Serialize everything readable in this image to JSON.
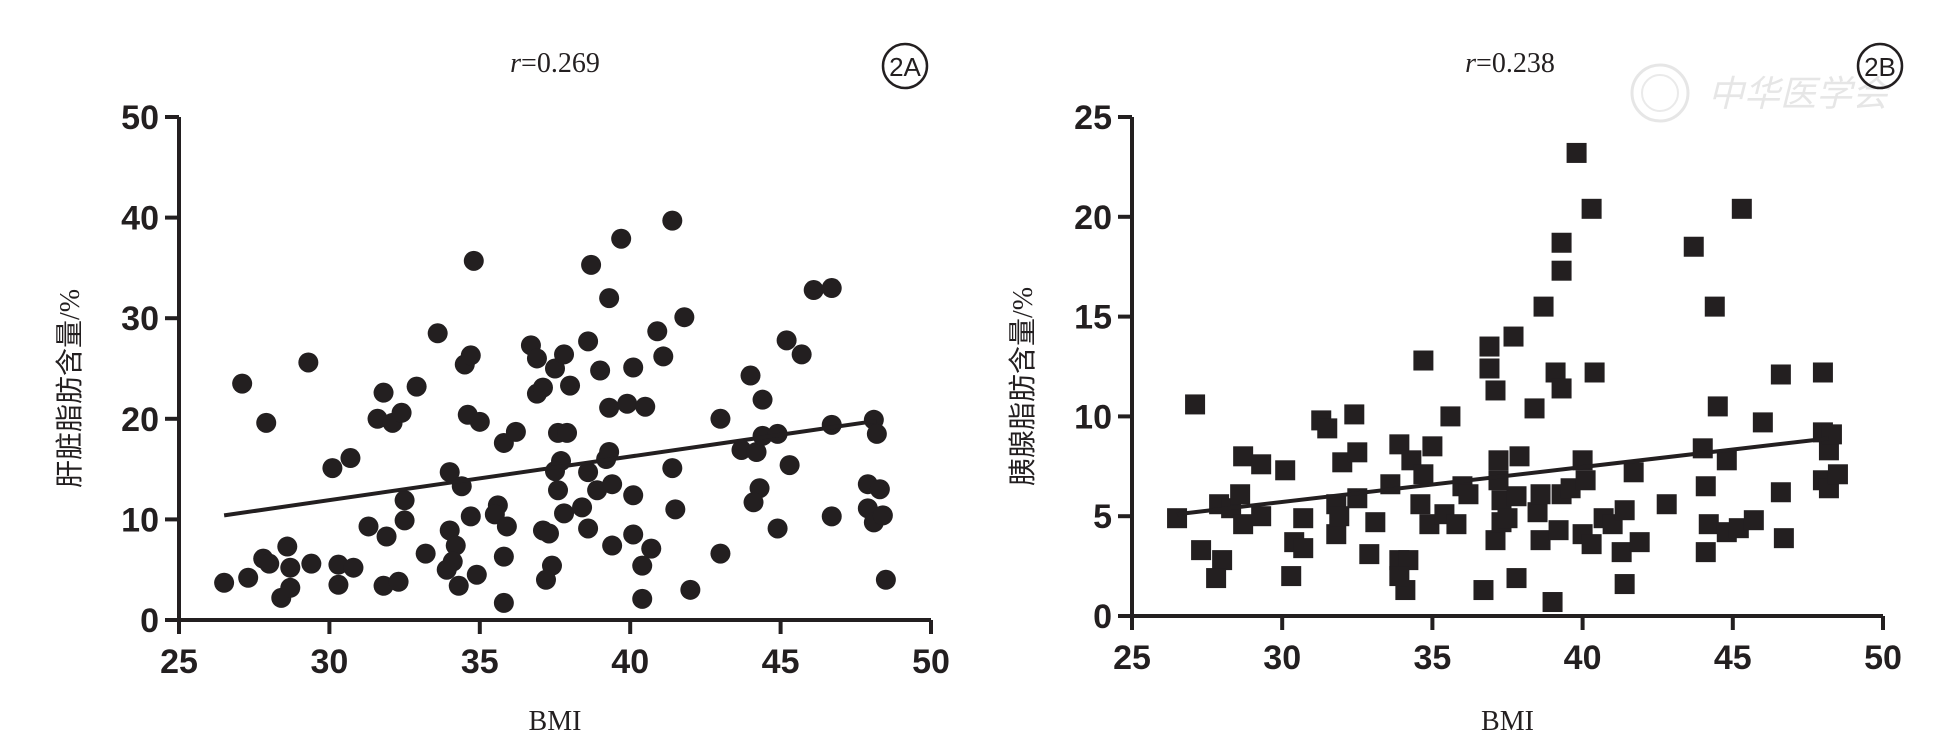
{
  "chart_data": [
    {
      "type": "scatter",
      "panel": "2A",
      "title": "r=0.269",
      "title_italic": "r",
      "title_rest": "=0.269",
      "xlabel": "BMI",
      "ylabel": "肝脏脂肪含量/%",
      "xlim": [
        25,
        50
      ],
      "ylim": [
        0,
        50
      ],
      "xticks": [
        "25",
        "30",
        "35",
        "40",
        "45",
        "50"
      ],
      "yticks": [
        "0",
        "10",
        "20",
        "30",
        "40",
        "50"
      ],
      "marker": "circle",
      "color": "#231f20",
      "points": [
        [
          26.5,
          3.7
        ],
        [
          27.3,
          4.2
        ],
        [
          27.1,
          23.5
        ],
        [
          27.9,
          19.6
        ],
        [
          27.8,
          6.1
        ],
        [
          28.0,
          5.6
        ],
        [
          28.4,
          2.2
        ],
        [
          28.6,
          7.3
        ],
        [
          28.7,
          5.2
        ],
        [
          28.7,
          3.2
        ],
        [
          29.4,
          5.6
        ],
        [
          29.3,
          25.6
        ],
        [
          30.1,
          15.1
        ],
        [
          30.3,
          3.5
        ],
        [
          30.3,
          5.5
        ],
        [
          30.7,
          16.1
        ],
        [
          30.8,
          5.2
        ],
        [
          31.3,
          9.3
        ],
        [
          31.6,
          20.0
        ],
        [
          31.8,
          22.6
        ],
        [
          32.1,
          19.6
        ],
        [
          32.4,
          20.6
        ],
        [
          31.8,
          3.4
        ],
        [
          31.9,
          8.3
        ],
        [
          32.3,
          3.8
        ],
        [
          32.5,
          11.9
        ],
        [
          32.5,
          9.9
        ],
        [
          32.9,
          23.2
        ],
        [
          33.2,
          6.6
        ],
        [
          33.6,
          28.5
        ],
        [
          34.0,
          14.7
        ],
        [
          34.0,
          8.9
        ],
        [
          34.2,
          7.4
        ],
        [
          34.1,
          5.8
        ],
        [
          33.9,
          5.0
        ],
        [
          34.3,
          3.4
        ],
        [
          34.4,
          13.3
        ],
        [
          34.5,
          25.4
        ],
        [
          34.7,
          26.3
        ],
        [
          34.6,
          20.4
        ],
        [
          34.7,
          10.3
        ],
        [
          34.8,
          35.7
        ],
        [
          35.0,
          19.7
        ],
        [
          34.9,
          4.5
        ],
        [
          35.6,
          11.4
        ],
        [
          35.5,
          10.5
        ],
        [
          35.8,
          17.6
        ],
        [
          36.2,
          18.7
        ],
        [
          35.9,
          9.3
        ],
        [
          35.8,
          6.3
        ],
        [
          35.8,
          1.7
        ],
        [
          36.7,
          27.3
        ],
        [
          36.9,
          26.0
        ],
        [
          36.9,
          22.5
        ],
        [
          37.1,
          23.1
        ],
        [
          37.5,
          25.0
        ],
        [
          37.1,
          8.9
        ],
        [
          37.3,
          8.6
        ],
        [
          37.4,
          5.4
        ],
        [
          37.2,
          4.0
        ],
        [
          37.6,
          18.6
        ],
        [
          37.9,
          18.6
        ],
        [
          37.7,
          15.8
        ],
        [
          37.5,
          14.8
        ],
        [
          37.6,
          12.9
        ],
        [
          37.8,
          26.4
        ],
        [
          38.0,
          23.3
        ],
        [
          37.8,
          10.6
        ],
        [
          38.4,
          11.2
        ],
        [
          38.6,
          14.7
        ],
        [
          38.6,
          27.7
        ],
        [
          38.7,
          35.3
        ],
        [
          38.6,
          9.1
        ],
        [
          38.9,
          12.9
        ],
        [
          39.0,
          24.8
        ],
        [
          39.2,
          16.0
        ],
        [
          39.3,
          16.7
        ],
        [
          39.3,
          21.1
        ],
        [
          39.3,
          32.0
        ],
        [
          39.4,
          13.5
        ],
        [
          39.4,
          7.4
        ],
        [
          39.7,
          37.9
        ],
        [
          39.9,
          21.5
        ],
        [
          40.1,
          12.4
        ],
        [
          40.1,
          25.1
        ],
        [
          40.1,
          8.5
        ],
        [
          40.4,
          5.4
        ],
        [
          40.4,
          2.1
        ],
        [
          40.5,
          21.2
        ],
        [
          40.7,
          7.1
        ],
        [
          40.9,
          28.7
        ],
        [
          41.1,
          26.2
        ],
        [
          41.4,
          39.7
        ],
        [
          41.4,
          15.1
        ],
        [
          41.5,
          11.0
        ],
        [
          41.8,
          30.1
        ],
        [
          42.0,
          3.0
        ],
        [
          43.0,
          20.0
        ],
        [
          43.0,
          6.6
        ],
        [
          43.7,
          16.9
        ],
        [
          44.0,
          24.3
        ],
        [
          44.2,
          16.7
        ],
        [
          44.3,
          13.1
        ],
        [
          44.1,
          11.7
        ],
        [
          44.4,
          21.9
        ],
        [
          44.4,
          18.3
        ],
        [
          44.9,
          18.5
        ],
        [
          44.9,
          9.1
        ],
        [
          45.2,
          27.8
        ],
        [
          45.3,
          15.4
        ],
        [
          45.7,
          26.4
        ],
        [
          46.1,
          32.8
        ],
        [
          46.7,
          33.0
        ],
        [
          46.7,
          19.4
        ],
        [
          46.7,
          10.3
        ],
        [
          48.1,
          19.9
        ],
        [
          48.2,
          18.5
        ],
        [
          47.9,
          13.5
        ],
        [
          48.3,
          13.0
        ],
        [
          47.9,
          11.1
        ],
        [
          48.1,
          9.7
        ],
        [
          48.4,
          10.4
        ],
        [
          48.5,
          4.0
        ]
      ],
      "trendline": [
        [
          26.5,
          10.4
        ],
        [
          48.2,
          19.8
        ]
      ]
    },
    {
      "type": "scatter",
      "panel": "2B",
      "title": "r=0.238",
      "title_italic": "r",
      "title_rest": "=0.238",
      "xlabel": "BMI",
      "ylabel": "胰腺脂肪含量/%",
      "xlim": [
        25,
        50
      ],
      "ylim": [
        0,
        25
      ],
      "xticks": [
        "25",
        "30",
        "35",
        "40",
        "45",
        "50"
      ],
      "yticks": [
        "0",
        "5",
        "10",
        "15",
        "20",
        "25"
      ],
      "marker": "square",
      "color": "#231f20",
      "points": [
        [
          26.5,
          4.9
        ],
        [
          27.1,
          10.6
        ],
        [
          27.3,
          3.3
        ],
        [
          28.0,
          2.8
        ],
        [
          27.8,
          1.9
        ],
        [
          27.9,
          5.6
        ],
        [
          28.3,
          5.4
        ],
        [
          28.6,
          6.1
        ],
        [
          28.7,
          8.0
        ],
        [
          28.7,
          4.6
        ],
        [
          29.3,
          7.6
        ],
        [
          29.3,
          5.0
        ],
        [
          30.1,
          7.3
        ],
        [
          30.3,
          2.0
        ],
        [
          30.4,
          3.7
        ],
        [
          30.7,
          3.4
        ],
        [
          30.7,
          4.9
        ],
        [
          31.3,
          9.8
        ],
        [
          31.5,
          9.4
        ],
        [
          31.8,
          4.1
        ],
        [
          31.8,
          5.6
        ],
        [
          31.9,
          5.0
        ],
        [
          32.0,
          7.7
        ],
        [
          32.4,
          10.1
        ],
        [
          32.5,
          8.2
        ],
        [
          32.5,
          5.9
        ],
        [
          32.9,
          3.1
        ],
        [
          33.1,
          4.7
        ],
        [
          33.6,
          6.6
        ],
        [
          33.9,
          8.6
        ],
        [
          33.9,
          2.8
        ],
        [
          34.2,
          2.8
        ],
        [
          34.1,
          1.3
        ],
        [
          33.9,
          2.0
        ],
        [
          34.3,
          7.8
        ],
        [
          34.7,
          12.8
        ],
        [
          34.7,
          7.1
        ],
        [
          34.6,
          5.6
        ],
        [
          34.9,
          4.6
        ],
        [
          35.0,
          8.5
        ],
        [
          35.4,
          5.1
        ],
        [
          35.6,
          10.0
        ],
        [
          35.8,
          4.6
        ],
        [
          36.0,
          6.5
        ],
        [
          36.2,
          6.1
        ],
        [
          36.7,
          1.3
        ],
        [
          36.9,
          13.5
        ],
        [
          36.9,
          12.4
        ],
        [
          37.1,
          11.3
        ],
        [
          37.2,
          7.8
        ],
        [
          37.2,
          6.8
        ],
        [
          37.1,
          3.8
        ],
        [
          37.3,
          4.7
        ],
        [
          37.3,
          5.8
        ],
        [
          37.5,
          4.9
        ],
        [
          37.7,
          14.0
        ],
        [
          37.8,
          1.9
        ],
        [
          37.8,
          6.0
        ],
        [
          37.9,
          8.0
        ],
        [
          38.4,
          10.4
        ],
        [
          38.7,
          15.5
        ],
        [
          38.5,
          5.2
        ],
        [
          38.6,
          3.8
        ],
        [
          38.6,
          6.1
        ],
        [
          39.0,
          0.7
        ],
        [
          39.1,
          12.2
        ],
        [
          39.3,
          18.7
        ],
        [
          39.3,
          17.3
        ],
        [
          39.3,
          11.4
        ],
        [
          39.2,
          4.3
        ],
        [
          39.3,
          6.1
        ],
        [
          39.6,
          6.4
        ],
        [
          39.8,
          23.2
        ],
        [
          40.0,
          7.8
        ],
        [
          40.1,
          6.8
        ],
        [
          40.0,
          4.1
        ],
        [
          40.3,
          3.6
        ],
        [
          40.3,
          20.4
        ],
        [
          40.4,
          12.2
        ],
        [
          40.7,
          4.9
        ],
        [
          41.0,
          4.6
        ],
        [
          41.3,
          3.2
        ],
        [
          41.4,
          1.6
        ],
        [
          41.4,
          5.3
        ],
        [
          41.7,
          7.2
        ],
        [
          41.9,
          3.7
        ],
        [
          42.8,
          5.6
        ],
        [
          43.7,
          18.5
        ],
        [
          44.0,
          8.4
        ],
        [
          44.1,
          6.5
        ],
        [
          44.1,
          3.2
        ],
        [
          44.2,
          4.6
        ],
        [
          44.4,
          15.5
        ],
        [
          44.5,
          10.5
        ],
        [
          44.8,
          7.8
        ],
        [
          44.8,
          4.2
        ],
        [
          45.2,
          4.4
        ],
        [
          45.3,
          20.4
        ],
        [
          45.7,
          4.8
        ],
        [
          46.0,
          9.7
        ],
        [
          46.6,
          12.1
        ],
        [
          46.6,
          6.2
        ],
        [
          46.7,
          3.9
        ],
        [
          48.0,
          12.2
        ],
        [
          48.0,
          9.2
        ],
        [
          48.0,
          6.8
        ],
        [
          48.2,
          8.3
        ],
        [
          48.2,
          6.4
        ],
        [
          48.3,
          9.1
        ],
        [
          48.5,
          7.1
        ]
      ],
      "trendline": [
        [
          26.5,
          5.1
        ],
        [
          48.2,
          8.9
        ]
      ]
    }
  ],
  "watermark": "中华医学会"
}
